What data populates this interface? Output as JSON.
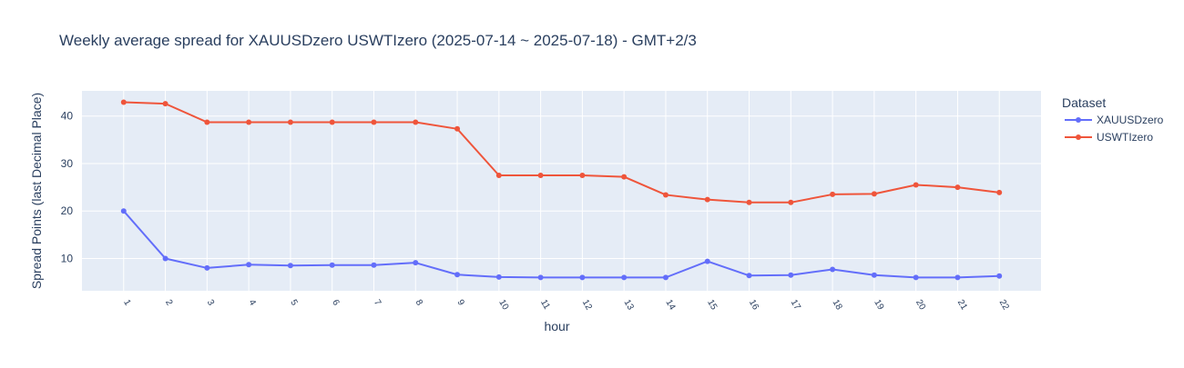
{
  "chart_data": {
    "type": "line",
    "title": "Weekly average spread for  XAUUSDzero USWTIzero (2025-07-14 ~ 2025-07-18) - GMT+2/3",
    "xlabel": "hour",
    "ylabel": "Spread Points (last Decimal Place)",
    "x": [
      1,
      2,
      3,
      4,
      5,
      6,
      7,
      8,
      9,
      10,
      11,
      12,
      13,
      14,
      15,
      16,
      17,
      18,
      19,
      20,
      21,
      22
    ],
    "x_tick_labels": [
      "1",
      "2",
      "3",
      "4",
      "5",
      "6",
      "7",
      "8",
      "9",
      "10",
      "11",
      "12",
      "13",
      "14",
      "15",
      "16",
      "17",
      "18",
      "19",
      "20",
      "21",
      "22"
    ],
    "xlim": [
      0,
      23
    ],
    "ylim": [
      3.2,
      45.3
    ],
    "y_ticks": [
      10,
      20,
      30,
      40
    ],
    "y_tick_labels": [
      "10",
      "20",
      "30",
      "40"
    ],
    "grid": true,
    "legend": {
      "title": "Dataset",
      "placement": "top-right outside"
    },
    "series": [
      {
        "name": "XAUUSDzero",
        "color": "#636efa",
        "values": [
          20.0,
          10.0,
          8.0,
          8.7,
          8.5,
          8.6,
          8.6,
          9.1,
          6.6,
          6.1,
          6.0,
          6.0,
          6.0,
          6.0,
          9.4,
          6.4,
          6.5,
          7.7,
          6.5,
          6.0,
          6.0,
          6.3
        ]
      },
      {
        "name": "USWTIzero",
        "color": "#ef553b",
        "values": [
          42.9,
          42.6,
          38.7,
          38.7,
          38.7,
          38.7,
          38.7,
          38.7,
          37.3,
          27.5,
          27.5,
          27.5,
          27.2,
          23.4,
          22.4,
          21.8,
          21.8,
          23.5,
          23.6,
          25.5,
          25.0,
          23.9
        ]
      }
    ]
  },
  "colors": {
    "plot_background": "#e5ecf6",
    "gridline": "#ffffff",
    "text": "#2a3f5f"
  }
}
